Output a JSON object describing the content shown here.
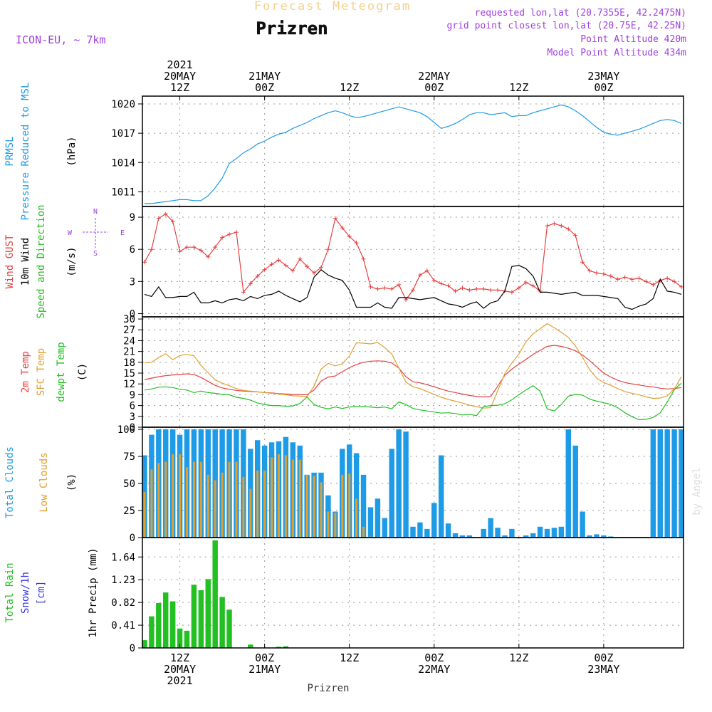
{
  "header": {
    "subtitle": "Forecast Meteogram",
    "city": "Prizren",
    "model": "ICON-EU, ~ 7km",
    "requested": "requested lon,lat (20.7355E, 42.2475N)",
    "closest": "grid point closest lon,lat (20.75E, 42.25N)",
    "point_alt": "Point Altitude 420m",
    "model_alt": "Model Point Altitude 434m"
  },
  "footer": {
    "city": "Prizren",
    "credit": "by Angel"
  },
  "time_axis": {
    "top": [
      {
        "t": 0,
        "lines": [
          "2021",
          "20MAY",
          "12Z"
        ]
      },
      {
        "t": 12,
        "lines": [
          "21MAY",
          "00Z"
        ]
      },
      {
        "t": 24,
        "lines": [
          "12Z"
        ]
      },
      {
        "t": 36,
        "lines": [
          "22MAY",
          "00Z"
        ]
      },
      {
        "t": 48,
        "lines": [
          "12Z"
        ]
      },
      {
        "t": 60,
        "lines": [
          "23MAY",
          "00Z"
        ]
      }
    ],
    "bottom": [
      {
        "t": 0,
        "lines": [
          "12Z",
          "20MAY",
          "2021"
        ]
      },
      {
        "t": 12,
        "lines": [
          "00Z",
          "21MAY"
        ]
      },
      {
        "t": 24,
        "lines": [
          "12Z"
        ]
      },
      {
        "t": 36,
        "lines": [
          "00Z",
          "22MAY"
        ]
      },
      {
        "t": 48,
        "lines": [
          "12Z"
        ]
      },
      {
        "t": 60,
        "lines": [
          "00Z",
          "23MAY"
        ]
      }
    ]
  },
  "colors": {
    "pressure": "#1e9be6",
    "gust": "#e84040",
    "wind": "#000000",
    "temp2m": "#e84040",
    "sfc": "#e0a030",
    "dew": "#22c022",
    "total_cloud": "#1e9be6",
    "low_cloud": "#e0a030",
    "rain": "#22c022",
    "snow": "#3434e0",
    "purple": "#a040e0"
  },
  "chart_data": {
    "type": "meteogram",
    "x_unit": "hours from 20MAY 12Z",
    "x": [
      -5,
      -4,
      -3,
      -2,
      -1,
      0,
      1,
      2,
      3,
      4,
      5,
      6,
      7,
      8,
      9,
      10,
      11,
      12,
      13,
      14,
      15,
      16,
      17,
      18,
      19,
      20,
      21,
      22,
      23,
      24,
      25,
      26,
      27,
      28,
      29,
      30,
      31,
      32,
      33,
      34,
      35,
      36,
      37,
      38,
      39,
      40,
      41,
      42,
      43,
      44,
      45,
      46,
      47,
      48,
      49,
      50,
      51,
      52,
      53,
      54,
      55,
      56,
      57,
      58,
      59,
      60,
      61,
      62,
      63,
      64,
      65,
      66,
      67,
      68,
      69,
      70,
      71
    ],
    "panels": [
      {
        "id": "pressure",
        "labels": [
          {
            "text": "PRMSL",
            "color": "#1e9be6"
          },
          {
            "text": "Pressure Reduced to MSL",
            "color": "#1e9be6"
          }
        ],
        "unit": "(hPa)",
        "yticks": [
          1011,
          1014,
          1017,
          1020
        ],
        "ylim": [
          1009.5,
          1020.8
        ],
        "series": [
          {
            "name": "PRMSL",
            "values": [
              1009.8,
              1009.8,
              1009.9,
              1010.0,
              1010.1,
              1010.2,
              1010.2,
              1010.1,
              1010.1,
              1010.6,
              1011.4,
              1012.4,
              1013.9,
              1014.4,
              1015.0,
              1015.4,
              1015.9,
              1016.2,
              1016.6,
              1016.9,
              1017.1,
              1017.5,
              1017.8,
              1018.1,
              1018.5,
              1018.8,
              1019.1,
              1019.3,
              1019.1,
              1018.8,
              1018.6,
              1018.7,
              1018.9,
              1019.1,
              1019.3,
              1019.5,
              1019.7,
              1019.5,
              1019.3,
              1019.1,
              1018.7,
              1018.1,
              1017.5,
              1017.7,
              1018.0,
              1018.4,
              1018.9,
              1019.1,
              1019.1,
              1018.9,
              1019.0,
              1019.1,
              1018.7,
              1018.8,
              1018.8,
              1019.1,
              1019.3,
              1019.5,
              1019.7,
              1019.9,
              1019.7,
              1019.3,
              1018.8,
              1018.2,
              1017.6,
              1017.1,
              1016.9,
              1016.8,
              1017.0,
              1017.2,
              1017.4,
              1017.7,
              1018.0,
              1018.3,
              1018.4,
              1018.3,
              1018.0
            ]
          }
        ]
      },
      {
        "id": "wind",
        "labels": [
          {
            "text": "Wind GUST",
            "color": "#e84040"
          },
          {
            "text": "10m Wind",
            "color": "#000000"
          },
          {
            "text": "Speed and Direction",
            "color": "#22c022"
          }
        ],
        "unit": "(m/s)",
        "yticks": [
          0,
          3,
          6,
          9
        ],
        "ylim": [
          -0.3,
          10.0
        ],
        "compass": {
          "north": "N",
          "south": "S",
          "west": "W",
          "east": "E"
        },
        "series": [
          {
            "name": "Wind GUST",
            "values": [
              4.8,
              6.0,
              8.9,
              9.3,
              8.6,
              5.8,
              6.2,
              6.2,
              5.9,
              5.3,
              6.2,
              7.1,
              7.4,
              7.6,
              2.0,
              2.8,
              3.5,
              4.1,
              4.6,
              5.0,
              4.5,
              4.0,
              5.1,
              4.4,
              3.8,
              4.3,
              6.0,
              8.9,
              8.0,
              7.2,
              6.6,
              5.1,
              2.5,
              2.3,
              2.4,
              2.3,
              2.7,
              1.3,
              2.2,
              3.6,
              4.0,
              3.1,
              2.8,
              2.6,
              2.1,
              2.4,
              2.2,
              2.3,
              2.3,
              2.2,
              2.2,
              2.1,
              2.0,
              2.4,
              2.9,
              2.6,
              2.1,
              8.2,
              8.4,
              8.2,
              7.9,
              7.3,
              4.8,
              4.0,
              3.8,
              3.7,
              3.5,
              3.2,
              3.4,
              3.2,
              3.3,
              3.0,
              2.7,
              3.1,
              3.3,
              3.0,
              2.5
            ]
          },
          {
            "name": "10m Wind",
            "values": [
              1.8,
              1.6,
              2.5,
              1.5,
              1.5,
              1.6,
              1.6,
              2.0,
              1.0,
              1.0,
              1.2,
              1.0,
              1.3,
              1.4,
              1.2,
              1.6,
              1.4,
              1.7,
              1.8,
              2.1,
              1.7,
              1.4,
              1.1,
              1.5,
              3.4,
              4.1,
              3.6,
              3.3,
              3.1,
              2.2,
              0.6,
              0.6,
              0.6,
              1.0,
              0.6,
              0.5,
              1.5,
              1.5,
              1.4,
              1.3,
              1.4,
              1.5,
              1.2,
              0.9,
              0.8,
              0.6,
              0.9,
              1.1,
              0.5,
              1.0,
              1.2,
              2.1,
              4.4,
              4.5,
              4.2,
              3.5,
              2.0,
              2.0,
              1.9,
              1.8,
              1.9,
              2.0,
              1.7,
              1.7,
              1.7,
              1.6,
              1.5,
              1.4,
              0.6,
              0.4,
              0.7,
              0.9,
              1.4,
              3.2,
              2.1,
              2.0,
              1.8
            ]
          }
        ]
      },
      {
        "id": "temperature",
        "labels": [
          {
            "text": "2m Temp",
            "color": "#e84040"
          },
          {
            "text": "SFC Temp",
            "color": "#e0a030"
          },
          {
            "text": "dewpt Temp",
            "color": "#22c022"
          }
        ],
        "unit": "(C)",
        "yticks": [
          0,
          3,
          6,
          9,
          12,
          15,
          18,
          21,
          24,
          27,
          30
        ],
        "ylim": [
          0,
          30.6
        ],
        "series": [
          {
            "name": "2m Temp",
            "values": [
              13.2,
              13.6,
              14.0,
              14.3,
              14.5,
              14.6,
              14.8,
              14.6,
              13.8,
              12.7,
              11.6,
              10.9,
              10.5,
              10.2,
              10.0,
              9.9,
              9.8,
              9.6,
              9.5,
              9.3,
              9.2,
              9.1,
              9.0,
              9.0,
              10.3,
              12.8,
              13.9,
              14.2,
              15.4,
              16.5,
              17.4,
              18.0,
              18.3,
              18.4,
              18.3,
              17.8,
              16.4,
              14.0,
              12.6,
              12.3,
              11.8,
              11.2,
              10.6,
              10.0,
              9.6,
              9.2,
              8.8,
              8.5,
              8.4,
              8.5,
              11.4,
              14.4,
              16.1,
              17.5,
              18.8,
              20.2,
              21.3,
              22.4,
              22.7,
              22.4,
              21.9,
              21.2,
              20.0,
              18.5,
              16.7,
              15.0,
              13.9,
              13.0,
              12.4,
              12.0,
              11.7,
              11.4,
              11.2,
              10.8,
              10.6,
              10.7,
              11.0
            ]
          },
          {
            "name": "SFC Temp",
            "values": [
              17.8,
              18.0,
              19.3,
              20.4,
              18.7,
              19.9,
              20.2,
              19.8,
              17.1,
              15.1,
              13.1,
              12.2,
              11.5,
              10.7,
              10.2,
              10.0,
              9.8,
              9.6,
              9.4,
              9.2,
              9.0,
              8.7,
              8.6,
              8.5,
              11.4,
              16.1,
              17.7,
              17.0,
              17.6,
              19.7,
              23.4,
              23.3,
              23.1,
              23.5,
              22.1,
              20.3,
              16.4,
              12.5,
              11.2,
              10.7,
              9.9,
              9.1,
              8.3,
              7.7,
              7.2,
              6.7,
              6.1,
              5.7,
              5.3,
              5.4,
              10.1,
              14.9,
              17.8,
              20.3,
              23.7,
              25.9,
              27.3,
              28.7,
              27.6,
              26.3,
              24.9,
              22.5,
              19.4,
              16.0,
              13.6,
              12.4,
              11.6,
              10.7,
              9.9,
              9.4,
              9.0,
              8.4,
              8.0,
              8.1,
              8.7,
              10.6,
              14.0
            ]
          },
          {
            "name": "dewpt Temp",
            "values": [
              10.3,
              10.6,
              11.1,
              11.2,
              11.0,
              10.5,
              10.3,
              9.6,
              10.0,
              9.6,
              9.4,
              9.1,
              9.0,
              8.3,
              8.0,
              7.5,
              6.7,
              6.3,
              6.0,
              6.0,
              5.8,
              5.9,
              6.6,
              8.4,
              6.3,
              5.5,
              5.1,
              5.6,
              5.2,
              5.6,
              5.7,
              5.7,
              5.6,
              5.4,
              5.6,
              5.1,
              7.0,
              6.3,
              5.2,
              4.8,
              4.5,
              4.2,
              3.9,
              4.0,
              3.8,
              3.4,
              3.6,
              3.2,
              5.7,
              6.0,
              6.1,
              6.5,
              7.6,
              9.0,
              10.3,
              11.5,
              10.0,
              5.1,
              4.5,
              6.3,
              8.6,
              9.1,
              8.9,
              7.8,
              7.2,
              6.8,
              6.3,
              5.4,
              4.0,
              2.9,
              2.1,
              2.2,
              2.7,
              4.0,
              7.0,
              10.4,
              12.2
            ]
          }
        ]
      },
      {
        "id": "clouds",
        "labels": [
          {
            "text": "Total Clouds",
            "color": "#1e9be6"
          },
          {
            "text": "Low Clouds",
            "color": "#e0a030"
          }
        ],
        "unit": "(%)",
        "yticks": [
          0,
          25,
          50,
          75,
          100
        ],
        "ylim": [
          0,
          102
        ],
        "series": [
          {
            "name": "Total Clouds",
            "values": [
              76,
              95,
              100,
              100,
              100,
              95,
              100,
              100,
              100,
              100,
              100,
              100,
              100,
              100,
              100,
              82,
              90,
              85,
              88,
              89,
              93,
              88,
              85,
              58,
              60,
              60,
              39,
              24,
              82,
              86,
              78,
              58,
              28,
              36,
              18,
              82,
              100,
              98,
              10,
              14,
              8,
              32,
              76,
              13,
              4,
              2,
              2,
              0,
              8,
              18,
              9,
              2,
              8,
              0,
              2,
              4,
              10,
              8,
              9,
              10,
              100,
              85,
              24,
              2,
              3,
              2,
              1,
              0,
              0,
              0,
              0,
              0,
              100,
              100,
              100,
              100,
              100
            ]
          },
          {
            "name": "Low Clouds",
            "values": [
              42,
              63,
              69,
              70,
              77,
              77,
              65,
              70,
              70,
              58,
              53,
              60,
              70,
              70,
              56,
              45,
              62,
              62,
              74,
              77,
              76,
              72,
              72,
              58,
              57,
              51,
              24,
              23,
              58,
              59,
              36,
              10,
              1,
              0,
              0,
              0,
              0,
              0,
              0,
              0,
              0,
              0,
              0,
              0,
              0,
              0,
              0,
              0,
              0,
              0,
              0,
              0,
              0,
              0,
              0,
              0,
              0,
              0,
              0,
              0,
              0,
              0,
              0,
              0,
              0,
              0,
              0,
              0,
              0,
              0,
              0,
              0,
              0,
              0,
              0,
              0,
              0
            ]
          }
        ]
      },
      {
        "id": "precip",
        "labels": [
          {
            "text": "Total Rain",
            "color": "#22c022"
          },
          {
            "text": "Snow/1h",
            "color": "#3434e0"
          },
          {
            "text": "[cm]",
            "color": "#3434e0"
          }
        ],
        "unit": "1hr Precip (mm)",
        "yticks": [
          0,
          0.41,
          0.82,
          1.23,
          1.64
        ],
        "ylim": [
          0,
          1.99
        ],
        "series": [
          {
            "name": "Total Rain",
            "values": [
              0.14,
              0.57,
              0.81,
              1.0,
              0.84,
              0.35,
              0.31,
              1.14,
              1.04,
              1.24,
              1.94,
              0.92,
              0.69,
              0,
              0,
              0.06,
              0,
              0,
              0,
              0.02,
              0.03,
              0,
              0,
              0,
              0,
              0,
              0,
              0,
              0,
              0,
              0,
              0,
              0,
              0,
              0,
              0,
              0,
              0,
              0,
              0,
              0,
              0,
              0,
              0,
              0,
              0,
              0,
              0,
              0,
              0,
              0,
              0,
              0,
              0,
              0,
              0,
              0,
              0,
              0,
              0,
              0,
              0,
              0,
              0,
              0,
              0,
              0,
              0,
              0,
              0,
              0,
              0,
              0,
              0,
              0,
              0,
              0
            ]
          }
        ]
      }
    ]
  }
}
